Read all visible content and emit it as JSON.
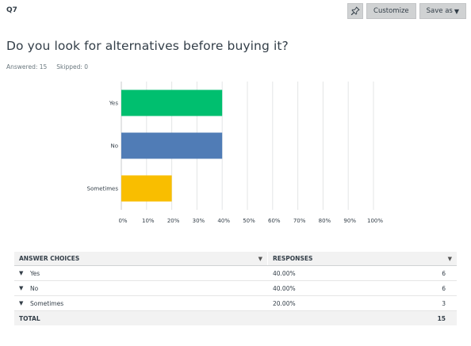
{
  "question": {
    "number": "Q7",
    "title": "Do you look for alternatives before buying it?",
    "answered": "Answered: 15",
    "skipped": "Skipped: 0"
  },
  "toolbar": {
    "pin_icon": "pin-icon",
    "customize_label": "Customize",
    "save_as_label": "Save as"
  },
  "chart_data": {
    "type": "bar",
    "orientation": "horizontal",
    "categories": [
      "Yes",
      "No",
      "Sometimes"
    ],
    "values": [
      40,
      40,
      20
    ],
    "colors": [
      "#00bf6f",
      "#507cb6",
      "#f9be00"
    ],
    "xlim": [
      0,
      100
    ],
    "xticks": [
      "0%",
      "10%",
      "20%",
      "30%",
      "40%",
      "50%",
      "60%",
      "70%",
      "80%",
      "90%",
      "100%"
    ],
    "grid": true
  },
  "table": {
    "headers": [
      "ANSWER CHOICES",
      "RESPONSES"
    ],
    "rows": [
      {
        "choice": "Yes",
        "percent": "40.00%",
        "count": "6"
      },
      {
        "choice": "No",
        "percent": "40.00%",
        "count": "6"
      },
      {
        "choice": "Sometimes",
        "percent": "20.00%",
        "count": "3"
      }
    ],
    "total_label": "TOTAL",
    "total_value": "15"
  }
}
